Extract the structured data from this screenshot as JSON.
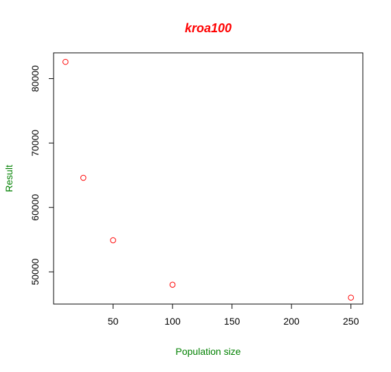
{
  "chart_data": {
    "type": "scatter",
    "title": "kroa100",
    "xlabel": "Population size",
    "ylabel": "Result",
    "x": [
      10,
      25,
      50,
      100,
      250
    ],
    "y": [
      82600,
      64600,
      54900,
      48000,
      46000
    ],
    "xlim": [
      0,
      260
    ],
    "ylim": [
      45000,
      84000
    ],
    "xticks": [
      50,
      100,
      150,
      200,
      250
    ],
    "yticks": [
      50000,
      60000,
      70000,
      80000
    ],
    "xtick_labels": [
      "50",
      "100",
      "150",
      "200",
      "250"
    ],
    "ytick_labels": [
      "50000",
      "60000",
      "70000",
      "80000"
    ],
    "marker": "open-circle",
    "grid": false,
    "colors": {
      "title": "#ff0000",
      "axis_labels": "#008000",
      "points": "#ff0000",
      "axes": "#000000"
    }
  }
}
